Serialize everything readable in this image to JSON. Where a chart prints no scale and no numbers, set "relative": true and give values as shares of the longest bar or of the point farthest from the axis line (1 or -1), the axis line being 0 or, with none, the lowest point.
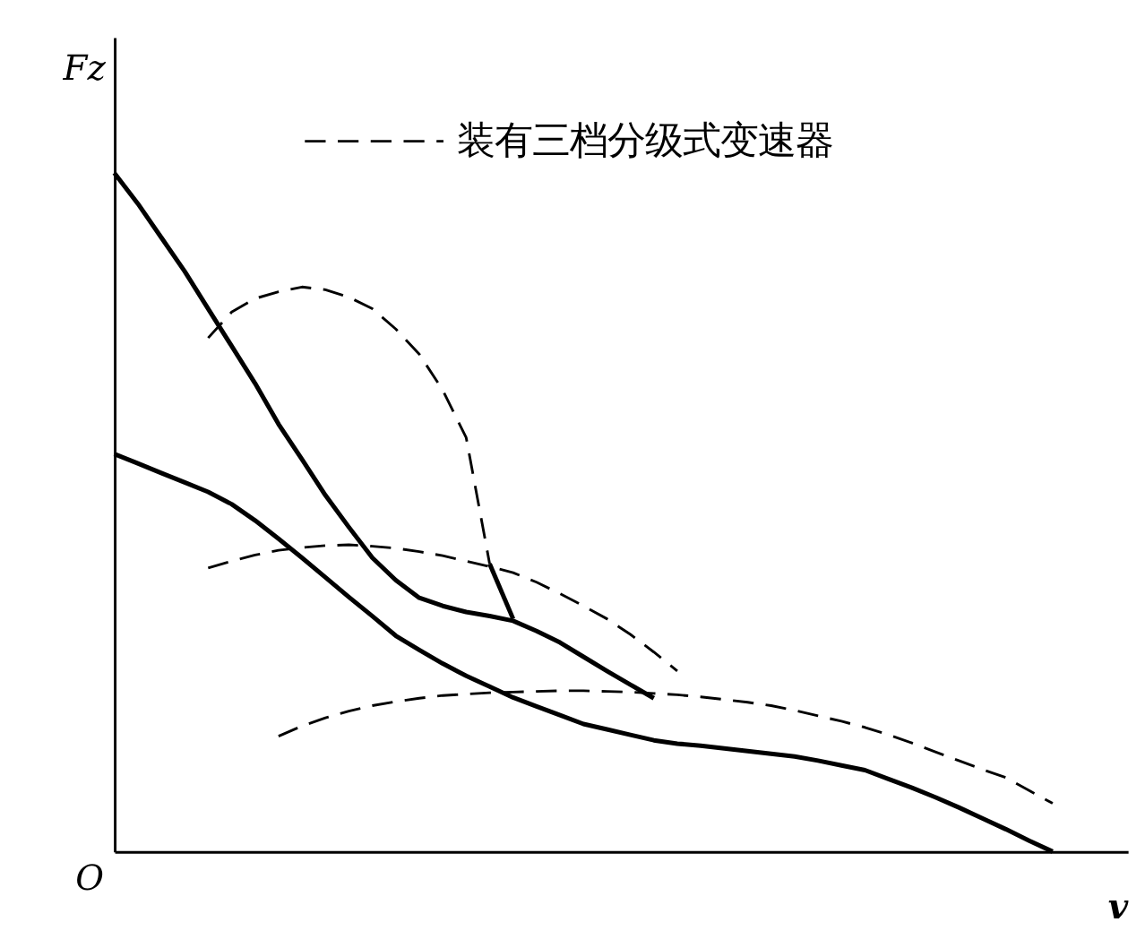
{
  "chart_data": {
    "type": "line",
    "relative": true,
    "xlabel": "v",
    "ylabel": "Fz",
    "tick_labels": false,
    "legend": "top",
    "marker": "none",
    "annotations": [
      "O"
    ],
    "categories": [
      null,
      null,
      null,
      null,
      null,
      null,
      null,
      null,
      null,
      null,
      null,
      null,
      null,
      null,
      null,
      null,
      null,
      null,
      null,
      null,
      null,
      null,
      null,
      null,
      null,
      null,
      null,
      null,
      null,
      null,
      null,
      null,
      null,
      null,
      null,
      null,
      null,
      null,
      null,
      null,
      null,
      null,
      null,
      null
    ],
    "series": [
      {
        "color": "#000000",
        "line_style": "solid",
        "values": [
          1.0,
          0.955,
          0.905,
          0.855,
          0.8,
          0.745,
          0.69,
          0.63,
          0.578,
          0.525,
          0.478,
          0.433,
          0.4,
          0.374,
          0.362,
          0.353,
          0.347,
          0.34,
          0.325,
          0.308,
          0.287,
          0.266,
          0.246,
          0.226,
          null,
          null,
          null,
          null,
          null,
          null,
          null,
          null,
          null,
          null,
          null,
          null,
          null,
          null,
          null,
          null,
          null,
          null,
          null,
          null
        ]
      },
      {
        "color": "#000000",
        "line_style": "solid",
        "values": [
          0.586,
          0.572,
          0.558,
          0.544,
          0.53,
          0.512,
          0.488,
          0.461,
          0.433,
          0.404,
          0.375,
          0.347,
          0.318,
          0.297,
          0.277,
          0.259,
          0.243,
          0.227,
          0.214,
          0.201,
          0.188,
          0.18,
          0.172,
          0.164,
          0.159,
          0.156,
          0.152,
          0.148,
          0.144,
          0.14,
          0.134,
          0.127,
          0.12,
          0.107,
          0.094,
          0.08,
          0.065,
          0.049,
          0.033,
          0.016,
          0,
          null,
          null,
          null
        ]
      },
      {
        "color": "#000000",
        "line_style": "solid",
        "values": [
          null,
          null,
          null,
          null,
          null,
          null,
          null,
          null,
          null,
          null,
          null,
          null,
          null,
          null,
          null,
          null,
          0.424,
          0.343,
          null,
          null,
          null,
          null,
          null,
          null,
          null,
          null,
          null,
          null,
          null,
          null,
          null,
          null,
          null,
          null,
          null,
          null,
          null,
          null,
          null,
          null,
          null,
          null,
          null,
          null
        ]
      },
      {
        "name": "装有三档分级式变速器",
        "color": "#000000",
        "line_style": "dashed",
        "values": [
          null,
          null,
          null,
          null,
          0.757,
          0.795,
          0.815,
          0.825,
          0.832,
          0.828,
          0.817,
          0.8,
          0.77,
          0.733,
          0.68,
          0.61,
          0.424,
          null,
          null,
          null,
          null,
          null,
          null,
          null,
          null,
          null,
          null,
          null,
          null,
          null,
          null,
          null,
          null,
          null,
          null,
          null,
          null,
          null,
          null,
          null,
          null,
          null,
          null,
          null
        ]
      },
      {
        "color": "#000000",
        "line_style": "dashed",
        "values": [
          null,
          null,
          null,
          null,
          0.418,
          0.428,
          0.437,
          0.444,
          0.448,
          0.451,
          0.452,
          0.45,
          0.447,
          0.442,
          0.436,
          0.428,
          0.42,
          0.411,
          0.397,
          0.38,
          0.362,
          0.343,
          0.32,
          0.294,
          0.266,
          null,
          null,
          null,
          null,
          null,
          null,
          null,
          null,
          null,
          null,
          null,
          null,
          null,
          null,
          null,
          null,
          null,
          null,
          null
        ]
      },
      {
        "color": "#000000",
        "line_style": "dashed",
        "values": [
          null,
          null,
          null,
          null,
          null,
          null,
          null,
          0.17,
          0.185,
          0.197,
          0.207,
          0.215,
          0.221,
          0.226,
          0.23,
          0.232,
          0.234,
          0.235,
          0.236,
          0.237,
          0.237,
          0.236,
          0.235,
          0.233,
          0.231,
          0.228,
          0.224,
          0.22,
          0.215,
          0.208,
          0.2,
          0.192,
          0.183,
          0.172,
          0.16,
          0.147,
          0.134,
          0.121,
          0.109,
          0.09,
          0.071,
          null,
          null,
          null
        ]
      }
    ]
  }
}
